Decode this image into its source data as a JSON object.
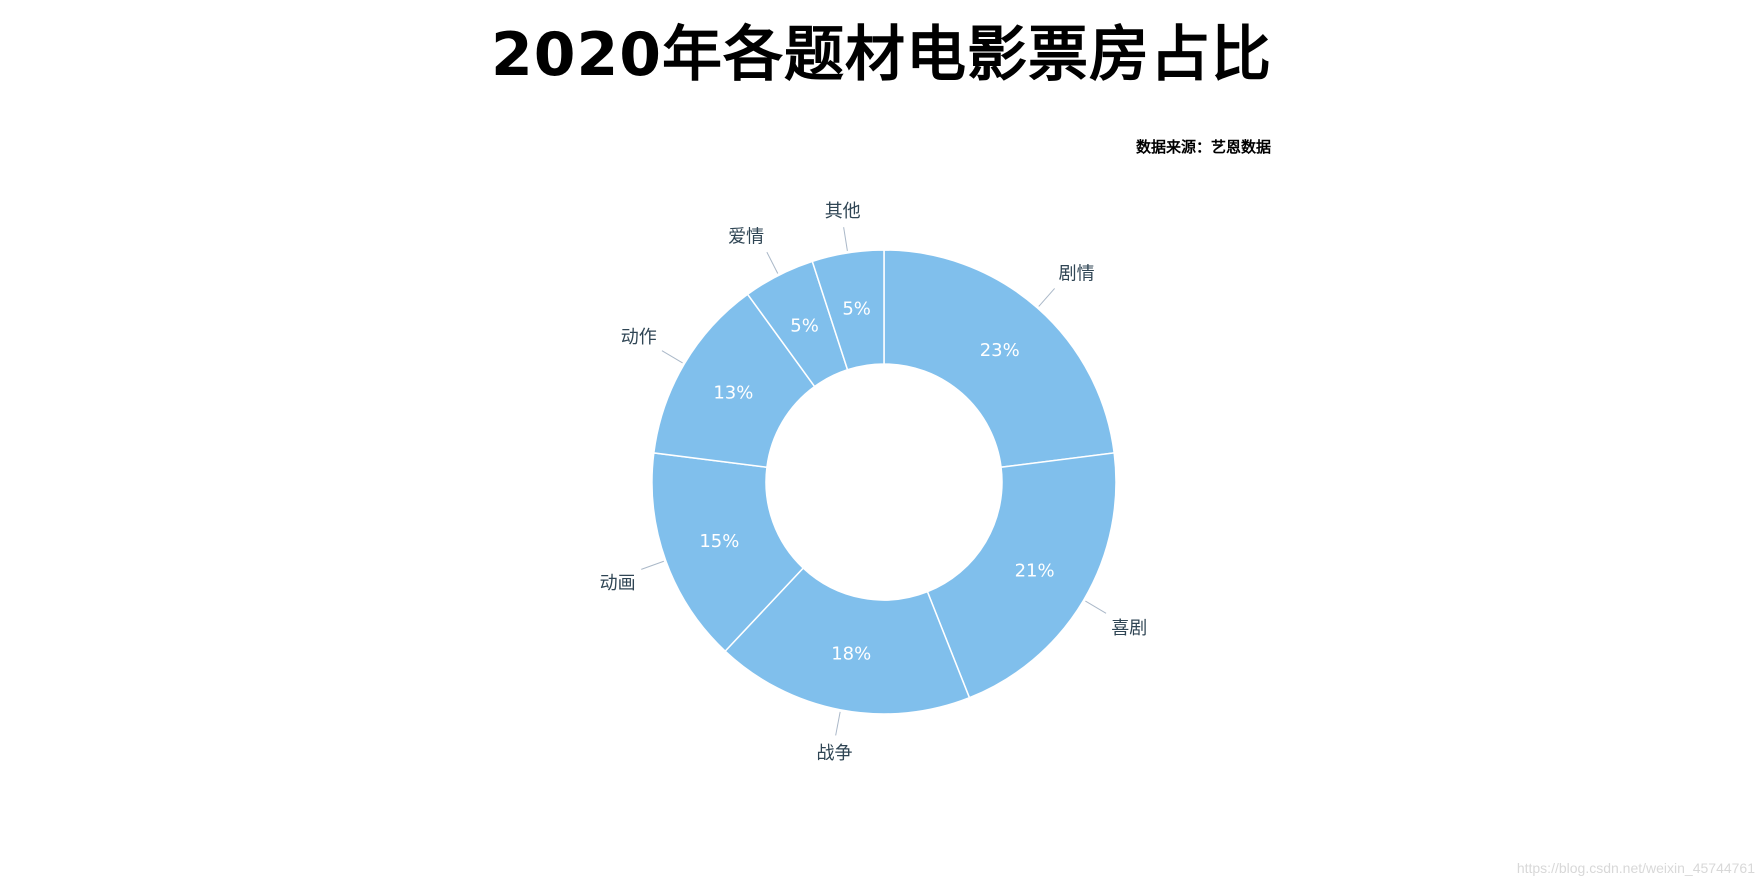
{
  "page": {
    "title": "2020年各题材电影票房占比",
    "source": "数据来源：艺恩数据",
    "watermark": "https://blog.csdn.net/weixin_45744761"
  },
  "chart_data": {
    "type": "pie",
    "variant": "donut",
    "title": "2020年各题材电影票房占比",
    "slice_color": "#80bfec",
    "separator_color": "#ffffff",
    "label_color": "#2f4554",
    "slices": [
      {
        "name": "剧情",
        "value": 23,
        "label": "23%"
      },
      {
        "name": "喜剧",
        "value": 21,
        "label": "21%"
      },
      {
        "name": "战争",
        "value": 18,
        "label": "18%"
      },
      {
        "name": "动画",
        "value": 15,
        "label": "15%"
      },
      {
        "name": "动作",
        "value": 13,
        "label": "13%"
      },
      {
        "name": "爱情",
        "value": 5,
        "label": "5%"
      },
      {
        "name": "其他",
        "value": 5,
        "label": "5%"
      }
    ]
  }
}
